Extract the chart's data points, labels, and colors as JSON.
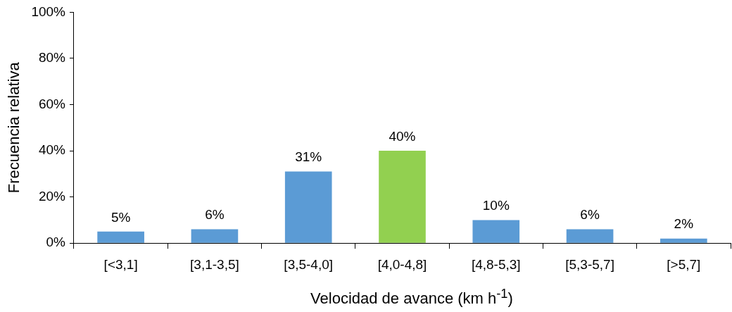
{
  "chart_data": {
    "type": "bar",
    "xlabel": "Velocidad de avance (km h$^{-1}$)",
    "ylabel": "Frecuencia relativa",
    "categories": [
      "[<3,1]",
      "[3,1-3,5]",
      "[3,5-4,0]",
      "[4,0-4,8]",
      "[4,8-5,3]",
      "[5,3-5,7]",
      "[>5,7]"
    ],
    "values": [
      5,
      6,
      31,
      40,
      10,
      6,
      2
    ],
    "value_labels": [
      "5%",
      "6%",
      "31%",
      "40%",
      "10%",
      "6%",
      "2%"
    ],
    "colors": [
      "#5b9bd5",
      "#5b9bd5",
      "#5b9bd5",
      "#92d050",
      "#5b9bd5",
      "#5b9bd5",
      "#5b9bd5"
    ],
    "ylim": [
      0,
      100
    ],
    "yticks": [
      {
        "value": 0,
        "label": "0%"
      },
      {
        "value": 20,
        "label": "20%"
      },
      {
        "value": 40,
        "label": "40%"
      },
      {
        "value": 60,
        "label": "60%"
      },
      {
        "value": 80,
        "label": "80%"
      },
      {
        "value": 100,
        "label": "100%"
      }
    ],
    "grid": false,
    "legend": false
  }
}
